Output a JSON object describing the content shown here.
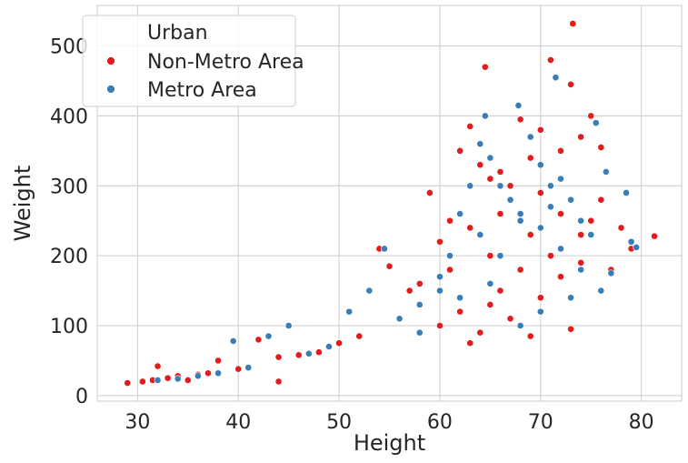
{
  "chart_data": {
    "type": "scatter",
    "title": "",
    "xlabel": "Height",
    "ylabel": "Weight",
    "xlim": [
      26,
      84
    ],
    "ylim": [
      -8,
      558
    ],
    "x_ticks": [
      30,
      40,
      50,
      60,
      70,
      80
    ],
    "y_ticks": [
      0,
      100,
      200,
      300,
      400,
      500
    ],
    "grid": true,
    "legend": {
      "title": "Urban",
      "placement": "top-left",
      "entries": [
        {
          "label": "Non-Metro Area",
          "color": "#e41a1c"
        },
        {
          "label": "Metro Area",
          "color": "#377eb8"
        }
      ]
    },
    "series": [
      {
        "name": "Non-Metro Area",
        "color": "#e41a1c",
        "points": [
          [
            29,
            18
          ],
          [
            30.5,
            20
          ],
          [
            31.5,
            22
          ],
          [
            32,
            42
          ],
          [
            33,
            25
          ],
          [
            34,
            28
          ],
          [
            35,
            22
          ],
          [
            36,
            30
          ],
          [
            37,
            32
          ],
          [
            38,
            50
          ],
          [
            40,
            38
          ],
          [
            42,
            80
          ],
          [
            44,
            20
          ],
          [
            44,
            55
          ],
          [
            46,
            58
          ],
          [
            48,
            62
          ],
          [
            50,
            75
          ],
          [
            52,
            85
          ],
          [
            54,
            210
          ],
          [
            55,
            185
          ],
          [
            57,
            150
          ],
          [
            58,
            160
          ],
          [
            59,
            290
          ],
          [
            60,
            220
          ],
          [
            61,
            250
          ],
          [
            62,
            350
          ],
          [
            63,
            385
          ],
          [
            64,
            330
          ],
          [
            64.5,
            470
          ],
          [
            65,
            310
          ],
          [
            66,
            320
          ],
          [
            67,
            300
          ],
          [
            68,
            395
          ],
          [
            69,
            340
          ],
          [
            70,
            380
          ],
          [
            71,
            480
          ],
          [
            72,
            350
          ],
          [
            73,
            445
          ],
          [
            73.2,
            532
          ],
          [
            74,
            370
          ],
          [
            75,
            400
          ],
          [
            76,
            355
          ],
          [
            78,
            240
          ],
          [
            79,
            210
          ],
          [
            81.3,
            228
          ],
          [
            67,
            110
          ],
          [
            64,
            90
          ],
          [
            69,
            85
          ],
          [
            73,
            95
          ],
          [
            70,
            140
          ],
          [
            65,
            130
          ],
          [
            62,
            120
          ],
          [
            60,
            100
          ],
          [
            63,
            75
          ],
          [
            66,
            150
          ],
          [
            68,
            180
          ],
          [
            71,
            200
          ],
          [
            74,
            230
          ],
          [
            75,
            250
          ],
          [
            76,
            280
          ],
          [
            77,
            180
          ],
          [
            72,
            260
          ],
          [
            70,
            290
          ],
          [
            66,
            260
          ],
          [
            61,
            180
          ],
          [
            63,
            240
          ],
          [
            65,
            200
          ],
          [
            69,
            230
          ],
          [
            72,
            170
          ],
          [
            74,
            190
          ]
        ]
      },
      {
        "name": "Metro Area",
        "color": "#377eb8",
        "points": [
          [
            32,
            22
          ],
          [
            34,
            24
          ],
          [
            36,
            28
          ],
          [
            38,
            32
          ],
          [
            39.5,
            78
          ],
          [
            41,
            40
          ],
          [
            43,
            85
          ],
          [
            45,
            100
          ],
          [
            47,
            60
          ],
          [
            49,
            70
          ],
          [
            51,
            120
          ],
          [
            53,
            150
          ],
          [
            54.5,
            210
          ],
          [
            56,
            110
          ],
          [
            58,
            130
          ],
          [
            60,
            170
          ],
          [
            61,
            200
          ],
          [
            62,
            260
          ],
          [
            63,
            300
          ],
          [
            64,
            360
          ],
          [
            64.5,
            400
          ],
          [
            65,
            340
          ],
          [
            66,
            300
          ],
          [
            67,
            280
          ],
          [
            67.8,
            415
          ],
          [
            68,
            260
          ],
          [
            69,
            370
          ],
          [
            70,
            330
          ],
          [
            71,
            300
          ],
          [
            71.5,
            455
          ],
          [
            72,
            310
          ],
          [
            73,
            280
          ],
          [
            74,
            250
          ],
          [
            75,
            230
          ],
          [
            75.5,
            390
          ],
          [
            76,
            150
          ],
          [
            76.5,
            320
          ],
          [
            77,
            175
          ],
          [
            78.5,
            290
          ],
          [
            79,
            220
          ],
          [
            79.5,
            212
          ],
          [
            68,
            100
          ],
          [
            70,
            120
          ],
          [
            73,
            140
          ],
          [
            65,
            160
          ],
          [
            62,
            140
          ],
          [
            66,
            200
          ],
          [
            70,
            240
          ],
          [
            72,
            210
          ],
          [
            74,
            180
          ],
          [
            64,
            230
          ],
          [
            68,
            250
          ],
          [
            71,
            270
          ],
          [
            60,
            150
          ],
          [
            58,
            90
          ]
        ]
      }
    ]
  }
}
